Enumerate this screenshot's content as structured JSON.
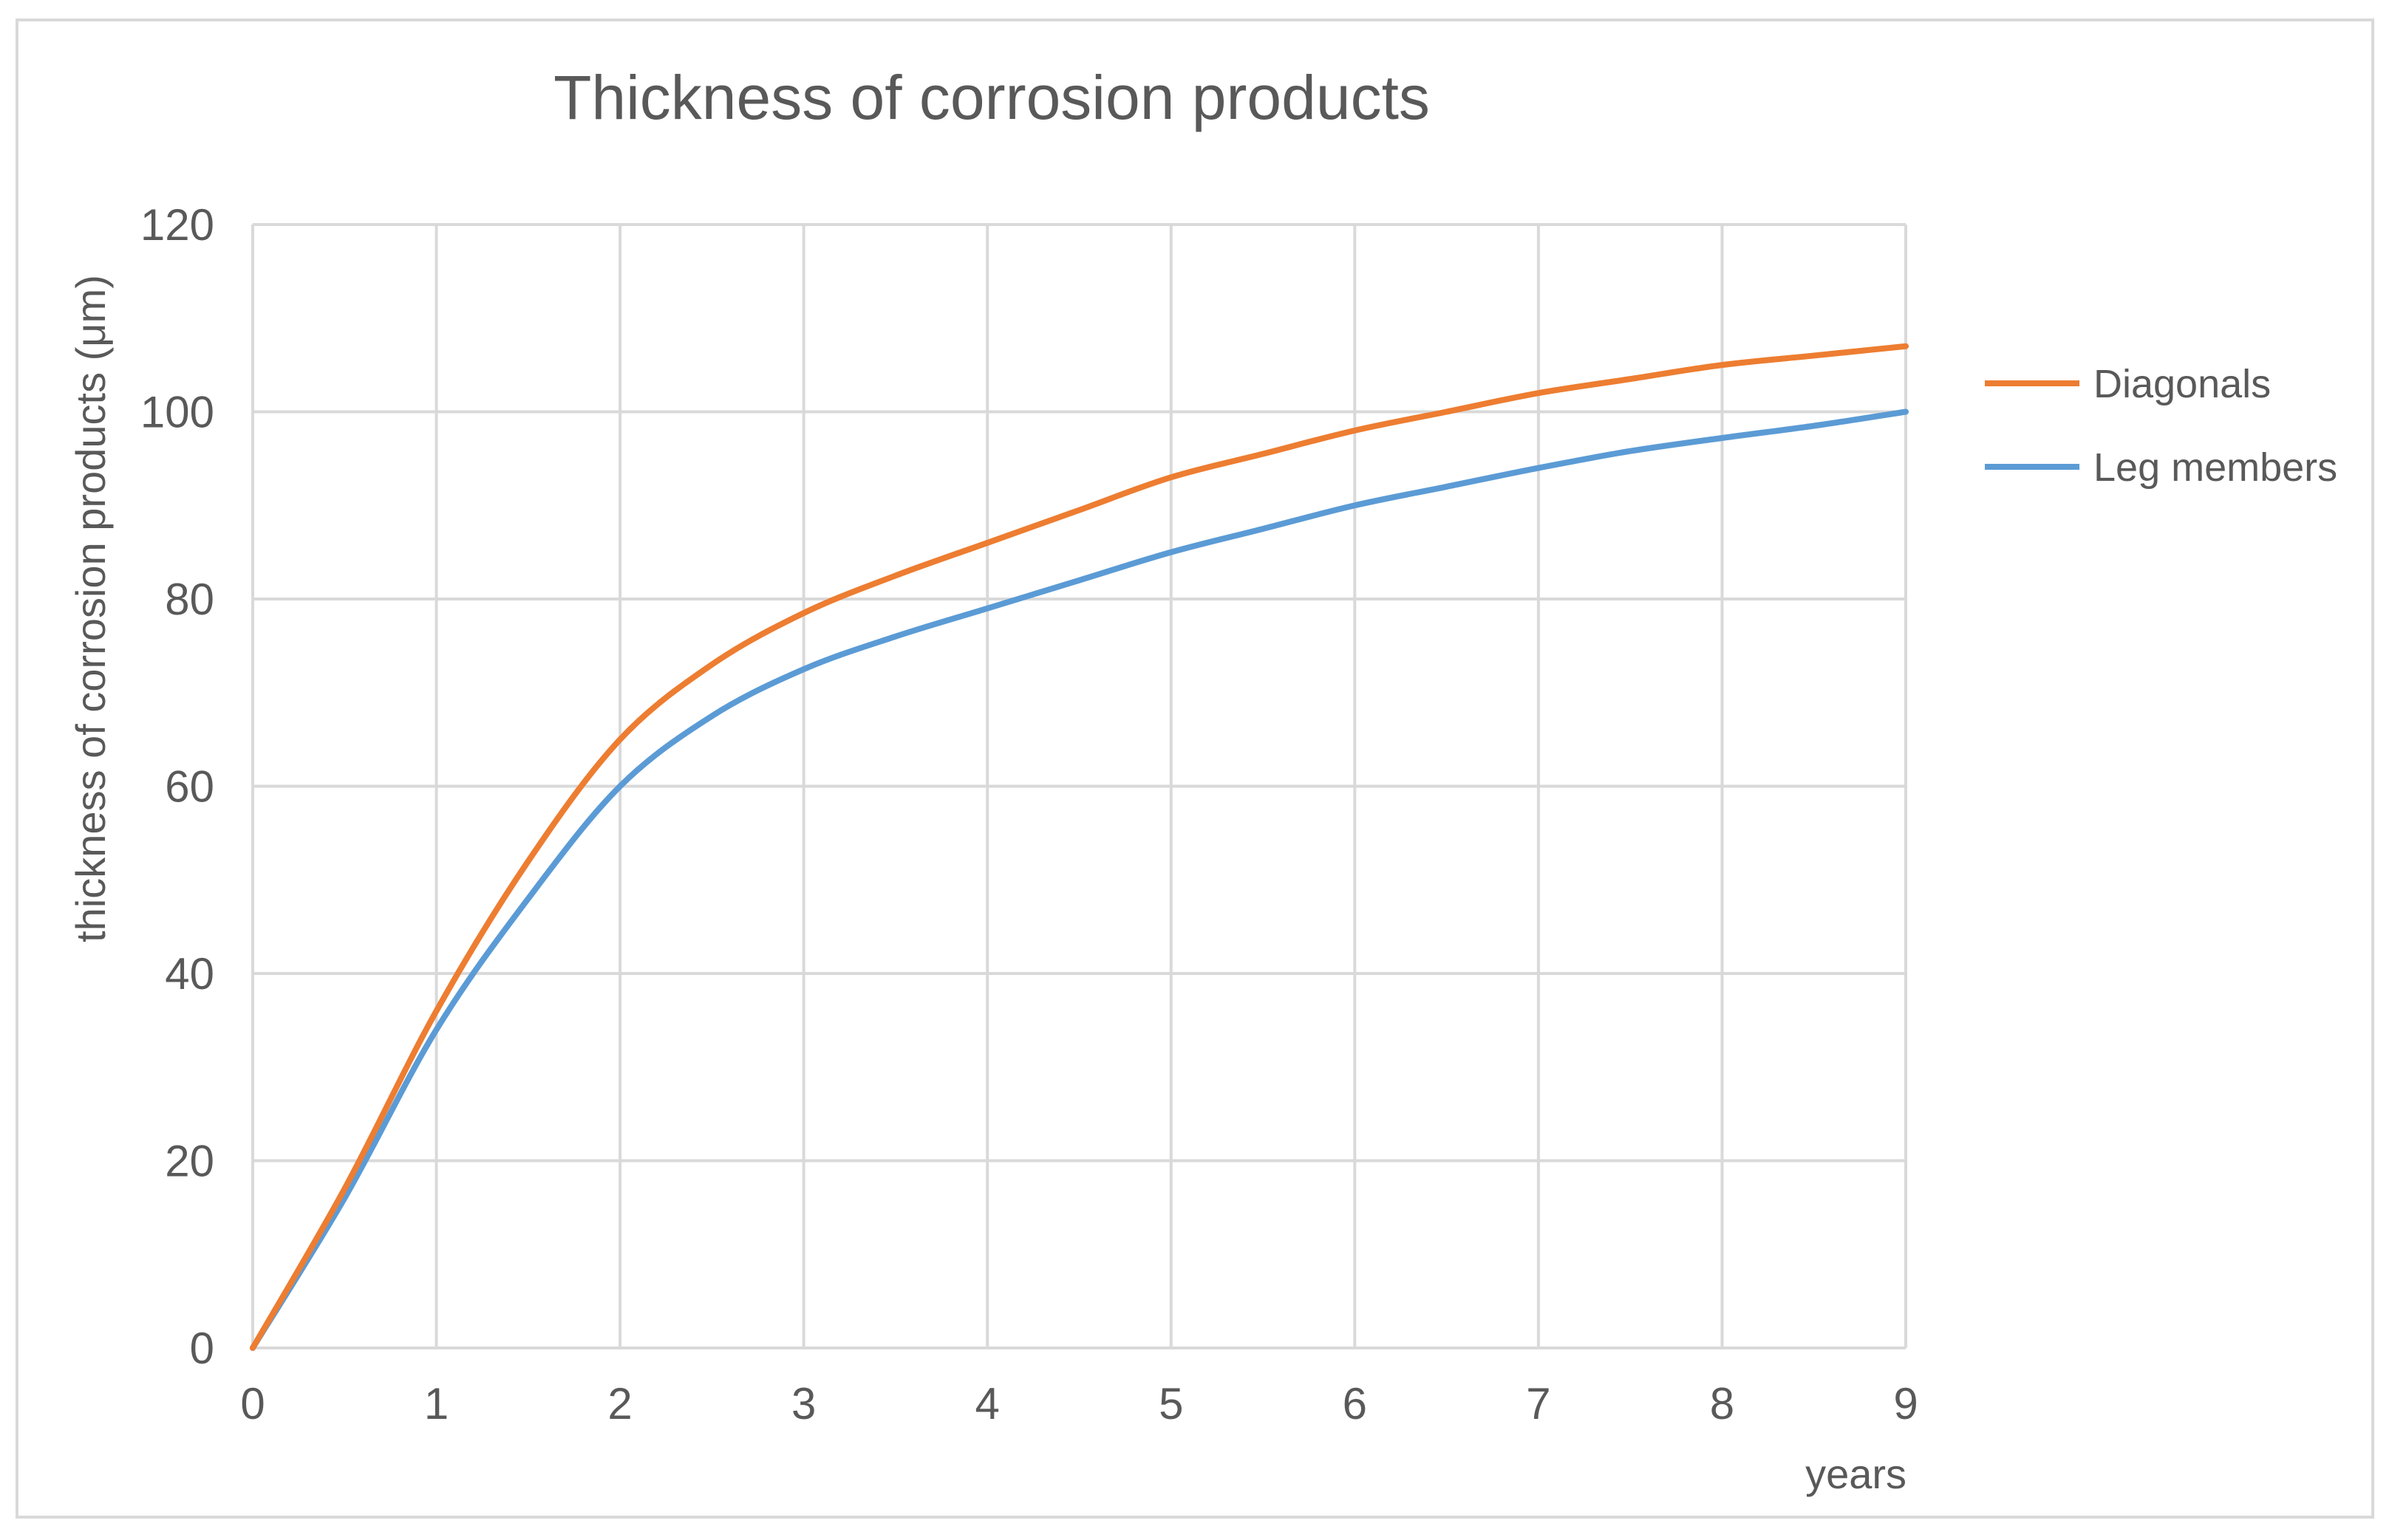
{
  "chart_data": {
    "type": "line",
    "title": "Thickness of corrosion products",
    "xlabel": "years",
    "ylabel": "thickness of corrosion products (μm)",
    "xlim": [
      0,
      9
    ],
    "ylim": [
      0,
      120
    ],
    "x_ticks": [
      0,
      1,
      2,
      3,
      4,
      5,
      6,
      7,
      8,
      9
    ],
    "y_ticks": [
      0,
      20,
      40,
      60,
      80,
      100,
      120
    ],
    "grid": true,
    "legend_position": "right",
    "series": [
      {
        "name": "Diagonals",
        "color": "#ed7d31",
        "x": [
          0,
          0.5,
          1,
          1.5,
          2,
          2.5,
          3,
          3.5,
          4,
          4.5,
          5,
          5.5,
          6,
          6.5,
          7,
          7.5,
          8,
          8.5,
          9
        ],
        "values": [
          0,
          17,
          36,
          52,
          65,
          73,
          78.5,
          82.5,
          86,
          89.5,
          93,
          95.5,
          98,
          100,
          102,
          103.5,
          105,
          106,
          107
        ]
      },
      {
        "name": "Leg members",
        "color": "#5b9bd5",
        "x": [
          0,
          0.5,
          1,
          1.5,
          2,
          2.5,
          3,
          3.5,
          4,
          4.5,
          5,
          5.5,
          6,
          6.5,
          7,
          7.5,
          8,
          8.5,
          9
        ],
        "values": [
          0,
          16,
          34,
          48,
          60,
          67.5,
          72.5,
          76,
          79,
          82,
          85,
          87.5,
          90,
          92,
          94,
          95.8,
          97.2,
          98.5,
          100
        ]
      }
    ]
  }
}
